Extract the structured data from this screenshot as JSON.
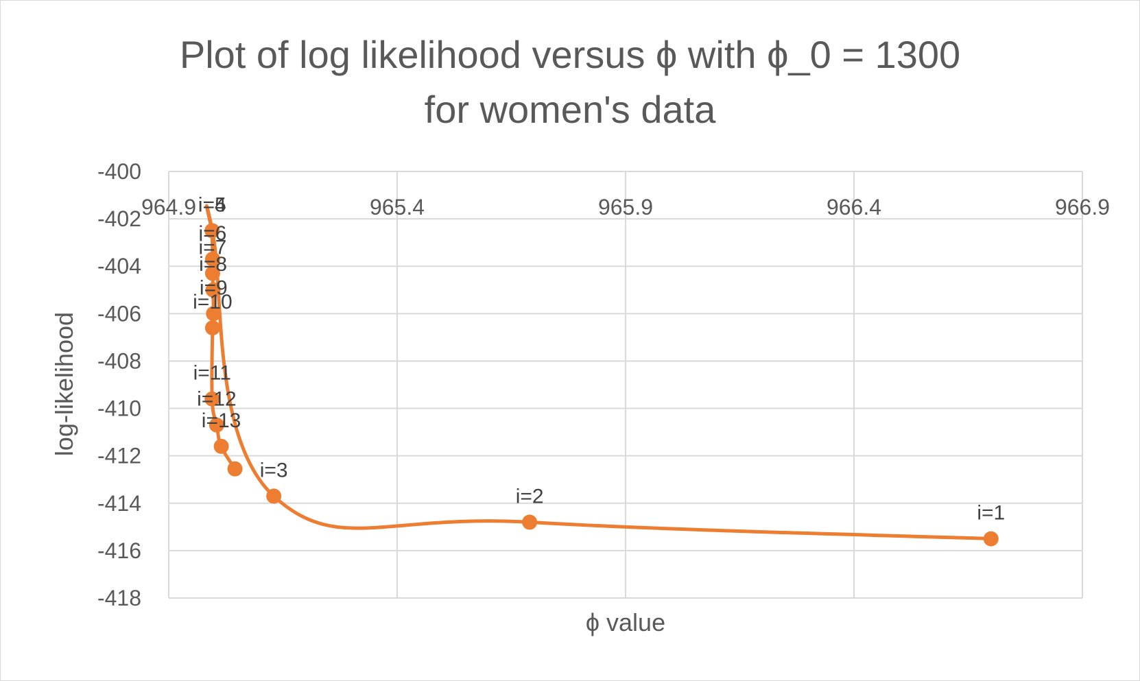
{
  "chart_data": {
    "type": "scatter",
    "title_line1": "Plot of log likelihood versus ϕ with ϕ_0 = 1300",
    "title_line2": "for women's data",
    "xlabel": "ϕ value",
    "ylabel": "log-likelihood",
    "xlim": [
      964.9,
      966.9
    ],
    "ylim": [
      -418,
      -400
    ],
    "x_ticks": [
      "964.9",
      "965.4",
      "965.9",
      "966.4",
      "966.9"
    ],
    "y_ticks": [
      "-400",
      "-402",
      "-404",
      "-406",
      "-408",
      "-410",
      "-412",
      "-414",
      "-416",
      "-418"
    ],
    "x_tick_values": [
      964.9,
      965.4,
      965.9,
      966.4,
      966.9
    ],
    "y_tick_values": [
      -400,
      -402,
      -404,
      -406,
      -408,
      -410,
      -412,
      -414,
      -416,
      -418
    ],
    "grid": true,
    "series_color": "#ED7D31",
    "smooth_line": true,
    "points": [
      {
        "label": "i=1",
        "x": 966.7,
        "y": -415.5
      },
      {
        "label": "i=2",
        "x": 965.69,
        "y": -414.8
      },
      {
        "label": "i=3",
        "x": 965.13,
        "y": -413.7
      },
      {
        "label": "i=4",
        "x": 964.995,
        "y": -402.5
      },
      {
        "label": "i=5",
        "x": 964.995,
        "y": -402.5
      },
      {
        "label": "i=6",
        "x": 964.996,
        "y": -403.7
      },
      {
        "label": "i=7",
        "x": 964.996,
        "y": -404.3
      },
      {
        "label": "i=8",
        "x": 964.997,
        "y": -405.0
      },
      {
        "label": "i=9",
        "x": 964.998,
        "y": -406.0
      },
      {
        "label": "i=10",
        "x": 964.996,
        "y": -406.6
      },
      {
        "label": "i=11",
        "x": 964.995,
        "y": -409.6
      },
      {
        "label": "i=12",
        "x": 965.005,
        "y": -410.7
      },
      {
        "label": "i=13",
        "x": 965.015,
        "y": -411.6
      },
      {
        "label": "",
        "x": 965.045,
        "y": -412.55
      }
    ]
  }
}
